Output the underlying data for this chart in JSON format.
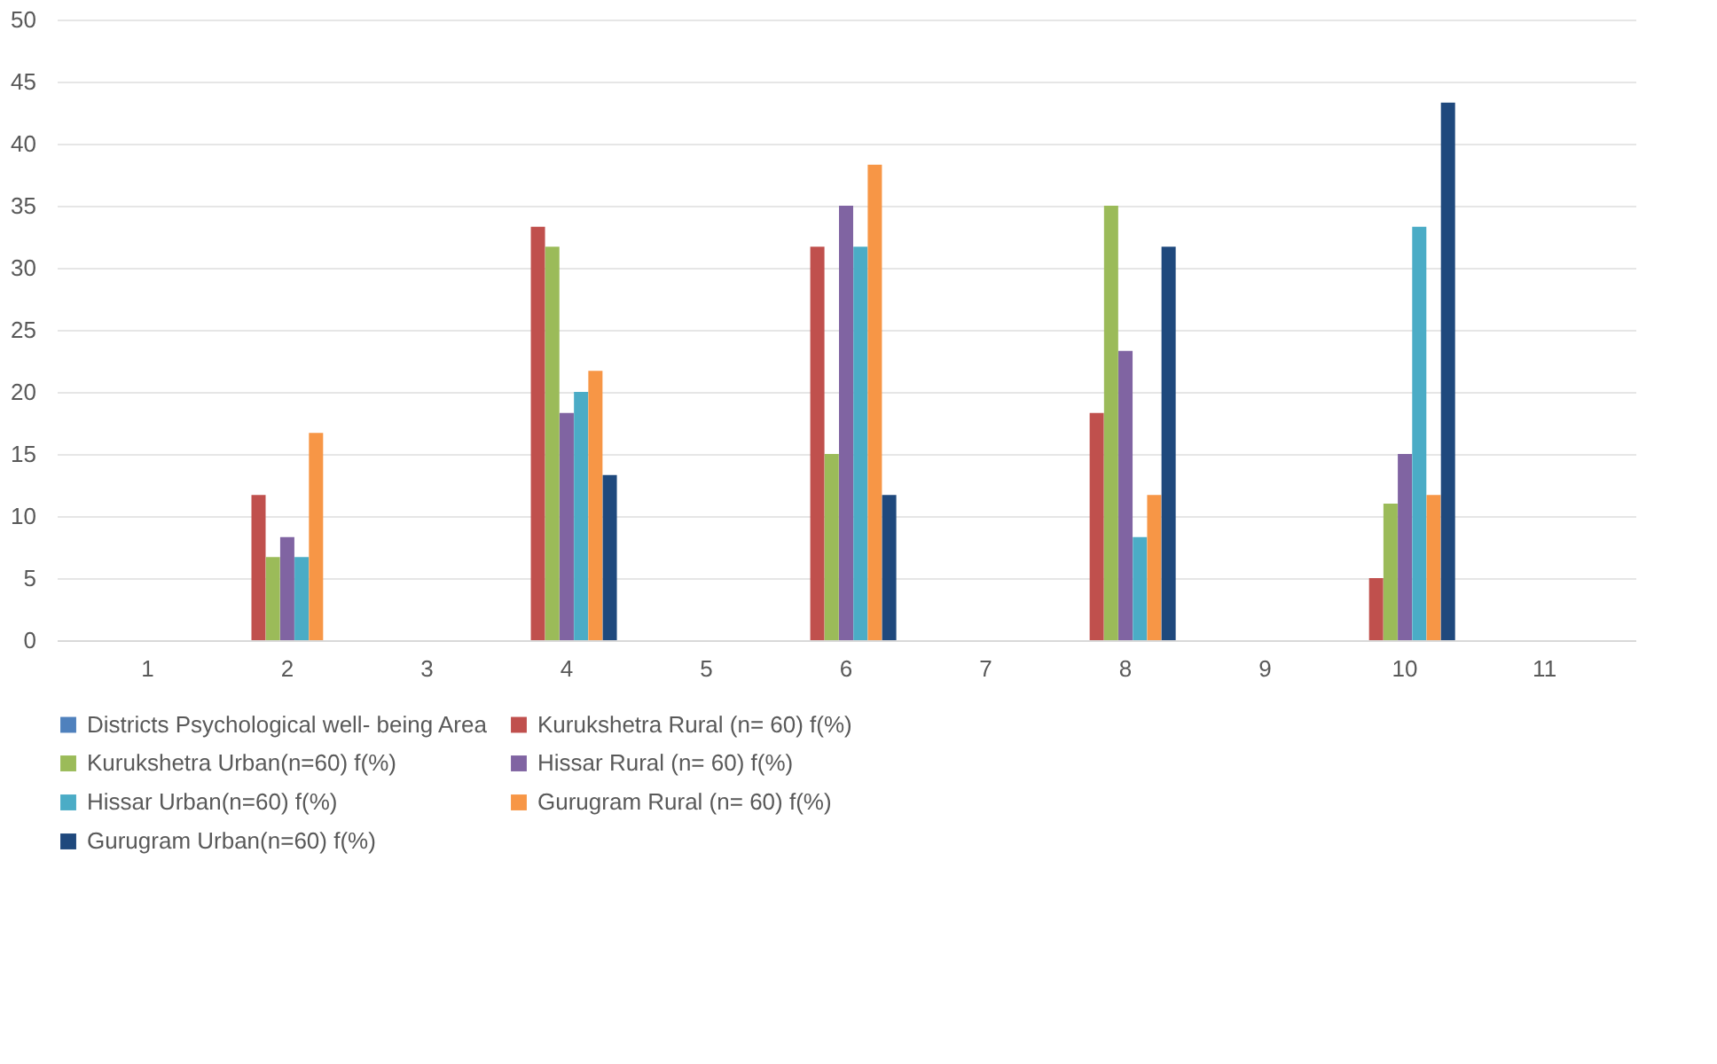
{
  "chart_data": {
    "type": "bar",
    "categories": [
      "1",
      "2",
      "3",
      "4",
      "5",
      "6",
      "7",
      "8",
      "9",
      "10",
      "11"
    ],
    "series": [
      {
        "name": "Districts Psychological well- being Area",
        "color": "#4f81bd",
        "values": [
          null,
          null,
          null,
          null,
          null,
          null,
          null,
          null,
          null,
          null,
          null
        ]
      },
      {
        "name": "Kurukshetra Rural (n= 60) f(%)",
        "color": "#c0504d",
        "values": [
          null,
          11.7,
          null,
          33.3,
          null,
          31.7,
          null,
          18.3,
          null,
          5,
          null
        ]
      },
      {
        "name": "Kurukshetra Urban(n=60) f(%)",
        "color": "#9bbb59",
        "values": [
          null,
          6.7,
          null,
          31.7,
          null,
          15,
          null,
          35,
          null,
          11,
          null
        ]
      },
      {
        "name": "Hissar Rural (n= 60) f(%)",
        "color": "#8064a2",
        "values": [
          null,
          8.3,
          null,
          18.3,
          null,
          35,
          null,
          23.3,
          null,
          15,
          null
        ]
      },
      {
        "name": "Hissar Urban(n=60) f(%)",
        "color": "#4bacc6",
        "values": [
          null,
          6.7,
          null,
          20,
          null,
          31.7,
          null,
          8.3,
          null,
          33.3,
          null
        ]
      },
      {
        "name": "Gurugram Rural (n= 60) f(%)",
        "color": "#f79646",
        "values": [
          null,
          16.7,
          null,
          21.7,
          null,
          38.3,
          null,
          11.7,
          null,
          11.7,
          null
        ]
      },
      {
        "name": "Gurugram Urban(n=60) f(%)",
        "color": "#1f497d",
        "values": [
          null,
          null,
          null,
          13.3,
          null,
          11.7,
          null,
          31.7,
          null,
          43.3,
          null
        ]
      }
    ],
    "ylim": [
      0,
      50
    ],
    "yticks": [
      0,
      5,
      10,
      15,
      20,
      25,
      30,
      35,
      40,
      45,
      50
    ],
    "grid": "y",
    "legend": "bottom"
  }
}
